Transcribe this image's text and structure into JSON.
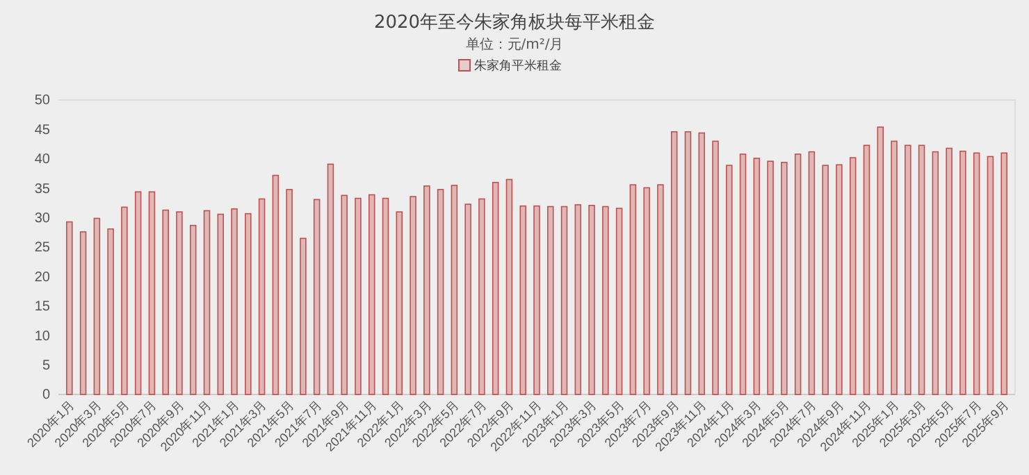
{
  "chart_data": {
    "type": "bar",
    "title": "2020年至今朱家角板块每平米租金",
    "subtitle": "单位：元/m²/月",
    "categories": [
      "2020年1月",
      null,
      "2020年3月",
      null,
      "2020年5月",
      null,
      "2020年7月",
      null,
      "2020年9月",
      null,
      "2020年11月",
      null,
      "2021年1月",
      null,
      "2021年3月",
      null,
      "2021年5月",
      null,
      "2021年7月",
      null,
      "2021年9月",
      null,
      "2021年11月",
      null,
      "2022年1月",
      null,
      "2022年3月",
      null,
      "2022年5月",
      null,
      "2022年7月",
      null,
      "2022年9月",
      null,
      "2022年11月",
      null,
      "2023年1月",
      null,
      "2023年3月",
      null,
      "2023年5月",
      null,
      "2023年7月",
      null,
      "2023年9月",
      null,
      "2023年11月",
      null,
      "2024年1月",
      null,
      "2024年3月",
      null,
      "2024年5月",
      null,
      "2024年7月",
      null,
      "2024年9月",
      null,
      "2024年11月",
      null,
      "2025年1月",
      null,
      "2025年3月",
      null,
      "2025年5月",
      null,
      "2025年7月",
      null,
      "2025年9月"
    ],
    "series": [
      {
        "name": "朱家角平米租金",
        "color": "#c0504d",
        "values": [
          29.3,
          27.6,
          29.9,
          28.1,
          31.8,
          34.4,
          34.4,
          31.3,
          31.0,
          28.7,
          31.2,
          30.6,
          31.5,
          30.7,
          33.2,
          37.2,
          34.8,
          26.5,
          33.1,
          39.1,
          33.8,
          33.3,
          33.9,
          33.3,
          31.0,
          33.6,
          35.4,
          34.8,
          35.5,
          32.3,
          33.2,
          36.0,
          36.5,
          32.0,
          32.0,
          31.9,
          31.9,
          32.2,
          32.1,
          31.9,
          31.6,
          35.6,
          35.1,
          35.6,
          44.6,
          44.6,
          44.4,
          43.0,
          38.9,
          40.8,
          40.1,
          39.6,
          39.4,
          40.8,
          41.2,
          38.9,
          39.0,
          40.2,
          42.3,
          45.4,
          43.0,
          42.3,
          42.3,
          41.2,
          41.8,
          41.3,
          41.0,
          40.4,
          41.0
        ]
      }
    ],
    "ylim": [
      0,
      50
    ],
    "yticks": [
      0,
      5,
      10,
      15,
      20,
      25,
      30,
      35,
      40,
      45,
      50
    ],
    "legend": "top"
  }
}
